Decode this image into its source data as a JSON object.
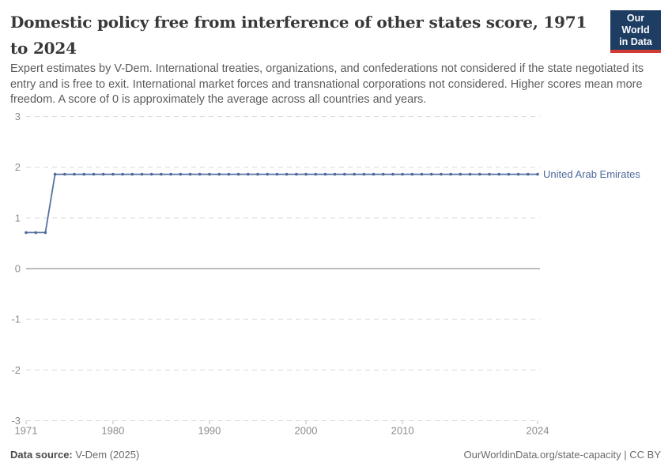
{
  "header": {
    "title": "Domestic policy free from interference of other states score, 1971 to 2024",
    "subtitle": "Expert estimates by V-Dem. International treaties, organizations, and confederations not considered if the state negotiated its entry and is free to exit. International market forces and transnational corporations not considered. Higher scores mean more freedom. A score of 0 is approximately the average across all countries and years."
  },
  "logo": {
    "line1": "Our World",
    "line2": "in Data",
    "bg_color": "#1d3d63",
    "accent_color": "#d23b33"
  },
  "footer": {
    "source_label": "Data source:",
    "source_value": "V-Dem (2025)",
    "right_text": "OurWorldinData.org/state-capacity | CC BY"
  },
  "chart_data": {
    "type": "line",
    "title": "Domestic policy free from interference of other states score, 1971 to 2024",
    "xlabel": "",
    "ylabel": "",
    "xlim": [
      1971,
      2024
    ],
    "ylim": [
      -3,
      3
    ],
    "x_ticks": [
      1971,
      1980,
      1990,
      2000,
      2010,
      2024
    ],
    "y_ticks": [
      -3,
      -2,
      -1,
      0,
      1,
      2,
      3
    ],
    "grid": "horizontal dashed gridlines, solid line at y=0",
    "legend_position": "label at end of line",
    "colors": {
      "gridline": "#dadada",
      "zero_line": "#a6a6a6",
      "tick_mark": "#bdbdbd",
      "axis_text": "#8c8c8c"
    },
    "series": [
      {
        "name": "United Arab Emirates",
        "color": "#4C6A9C",
        "x": [
          1971,
          1972,
          1973,
          1974,
          1975,
          1976,
          1977,
          1978,
          1979,
          1980,
          1981,
          1982,
          1983,
          1984,
          1985,
          1986,
          1987,
          1988,
          1989,
          1990,
          1991,
          1992,
          1993,
          1994,
          1995,
          1996,
          1997,
          1998,
          1999,
          2000,
          2001,
          2002,
          2003,
          2004,
          2005,
          2006,
          2007,
          2008,
          2009,
          2010,
          2011,
          2012,
          2013,
          2014,
          2015,
          2016,
          2017,
          2018,
          2019,
          2020,
          2021,
          2022,
          2023,
          2024
        ],
        "values": [
          0.71,
          0.71,
          0.71,
          1.86,
          1.86,
          1.86,
          1.86,
          1.86,
          1.86,
          1.86,
          1.86,
          1.86,
          1.86,
          1.86,
          1.86,
          1.86,
          1.86,
          1.86,
          1.86,
          1.86,
          1.86,
          1.86,
          1.86,
          1.86,
          1.86,
          1.86,
          1.86,
          1.86,
          1.86,
          1.86,
          1.86,
          1.86,
          1.86,
          1.86,
          1.86,
          1.86,
          1.86,
          1.86,
          1.86,
          1.86,
          1.86,
          1.86,
          1.86,
          1.86,
          1.86,
          1.86,
          1.86,
          1.86,
          1.86,
          1.86,
          1.86,
          1.86,
          1.86,
          1.86
        ]
      }
    ]
  }
}
